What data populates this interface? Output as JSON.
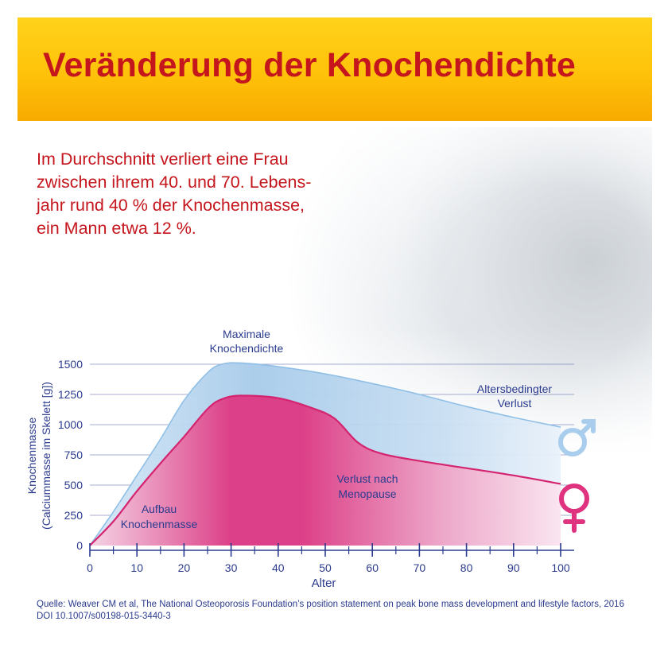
{
  "header": {
    "title": "Veränderung der Knochendichte"
  },
  "intro_lines": [
    "Im Durchschnitt verliert eine Frau",
    "zwischen ihrem 40. und 70. Lebens-",
    "jahr rund 40 % der Knochenmasse,",
    "ein Mann etwa 12 %."
  ],
  "annotations": {
    "peak": [
      "Maximale",
      "Knochendichte"
    ],
    "age_loss": [
      "Altersbedingter",
      "Verlust"
    ],
    "menopause_loss": [
      "Verlust nach",
      "Menopause"
    ],
    "buildup": [
      "Aufbau",
      "Knochenmasse"
    ]
  },
  "source": "Quelle: Weaver CM et al, The National Osteoporosis Foundation’s position statement on peak bone mass development and lifestyle factors, 2016 DOI 10.1007/s00198-015-3440-3",
  "colors": {
    "title": "#c5161d",
    "intro": "#c5161d",
    "axis": "#2b3b8f",
    "male": "#a9cdec",
    "male_line": "#8fbfe6",
    "female": "#e0337f",
    "female_line": "#d4246f"
  },
  "icons": {
    "male": "male-symbol-icon",
    "female": "female-symbol-icon"
  },
  "chart_data": {
    "type": "area",
    "title": "",
    "xlabel": "Alter",
    "ylabel": "Knochenmasse",
    "ylabel_sub": "(Calciummasse im Skelett [g])",
    "xlim": [
      0,
      100
    ],
    "ylim": [
      0,
      1500
    ],
    "xticks": [
      0,
      10,
      20,
      30,
      40,
      50,
      60,
      70,
      80,
      90,
      100
    ],
    "yticks": [
      0,
      250,
      500,
      750,
      1000,
      1250,
      1500
    ],
    "grid": true,
    "series": [
      {
        "key": "male",
        "x": [
          0,
          5,
          10,
          15,
          20,
          25,
          28,
          32,
          40,
          50,
          60,
          70,
          80,
          90,
          100
        ],
        "y": [
          0,
          280,
          580,
          880,
          1200,
          1430,
          1500,
          1510,
          1480,
          1420,
          1340,
          1250,
          1150,
          1060,
          980
        ]
      },
      {
        "key": "female",
        "x": [
          0,
          5,
          10,
          15,
          20,
          25,
          28,
          32,
          40,
          47,
          52,
          57,
          62,
          70,
          80,
          90,
          100
        ],
        "y": [
          0,
          200,
          450,
          680,
          900,
          1130,
          1210,
          1240,
          1220,
          1140,
          1050,
          850,
          760,
          700,
          640,
          580,
          510
        ]
      }
    ]
  }
}
